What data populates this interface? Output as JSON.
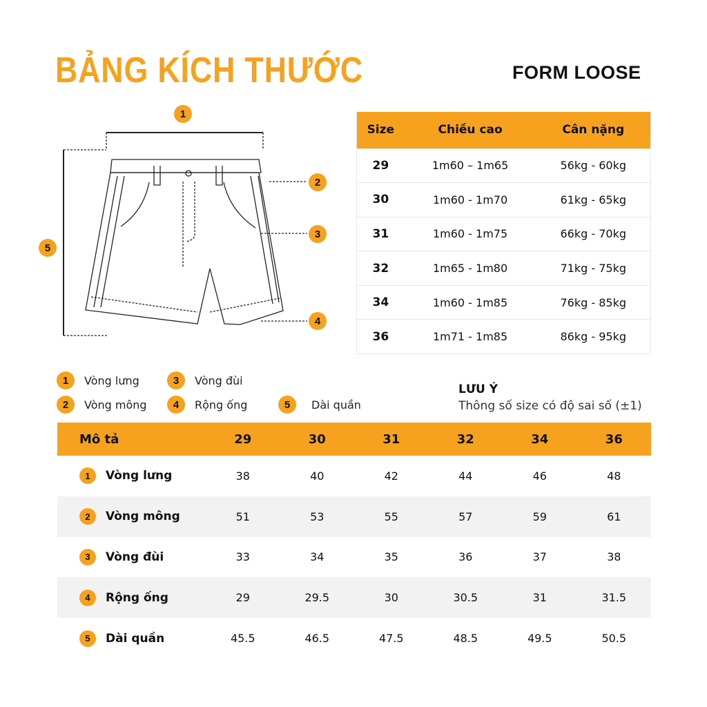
{
  "title": "BẢNG KÍCH THƯỚC",
  "form": "FORM LOOSE",
  "accent": "#F6A21E",
  "diagram": {
    "markers": [
      "1",
      "2",
      "3",
      "4",
      "5"
    ]
  },
  "size_table": {
    "headers": [
      "Size",
      "Chiều cao",
      "Cân nặng"
    ],
    "rows": [
      [
        "29",
        "1m60 – 1m65",
        "56kg - 60kg"
      ],
      [
        "30",
        "1m60 - 1m70",
        "61kg - 65kg"
      ],
      [
        "31",
        "1m60 - 1m75",
        "66kg - 70kg"
      ],
      [
        "32",
        "1m65 - 1m80",
        "71kg - 75kg"
      ],
      [
        "34",
        "1m60 - 1m85",
        "76kg - 85kg"
      ],
      [
        "36",
        "1m71 - 1m85",
        "86kg - 95kg"
      ]
    ]
  },
  "legend": [
    {
      "num": "1",
      "label": "Vòng lưng"
    },
    {
      "num": "2",
      "label": "Vòng mông"
    },
    {
      "num": "3",
      "label": "Vòng đùi"
    },
    {
      "num": "4",
      "label": "Rộng ống"
    },
    {
      "num": "5",
      "label": "Dài quần"
    }
  ],
  "note": {
    "heading": "LƯU Ý",
    "text": "Thông số size có độ sai số (±1)"
  },
  "measure_table": {
    "headers": [
      "Mô tả",
      "29",
      "30",
      "31",
      "32",
      "34",
      "36"
    ],
    "rows": [
      {
        "num": "1",
        "label": "Vòng lưng",
        "values": [
          "38",
          "40",
          "42",
          "44",
          "46",
          "48"
        ]
      },
      {
        "num": "2",
        "label": "Vòng mông",
        "values": [
          "51",
          "53",
          "55",
          "57",
          "59",
          "61"
        ]
      },
      {
        "num": "3",
        "label": "Vòng đùi",
        "values": [
          "33",
          "34",
          "35",
          "36",
          "37",
          "38"
        ]
      },
      {
        "num": "4",
        "label": "Rộng ống",
        "values": [
          "29",
          "29.5",
          "30",
          "30.5",
          "31",
          "31.5"
        ]
      },
      {
        "num": "5",
        "label": "Dài quần",
        "values": [
          "45.5",
          "46.5",
          "47.5",
          "48.5",
          "49.5",
          "50.5"
        ]
      }
    ]
  }
}
